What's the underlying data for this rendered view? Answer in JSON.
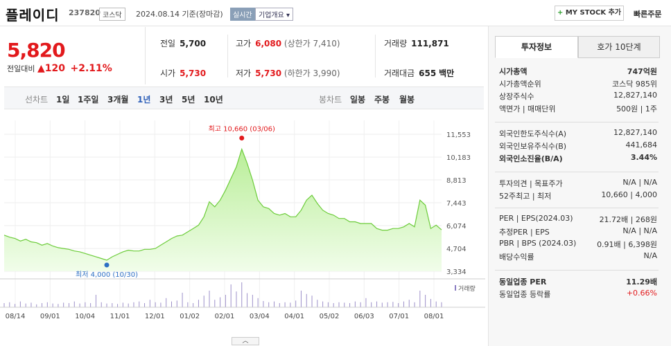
{
  "header": {
    "name": "플레이디",
    "code": "237820",
    "market": "코스닥",
    "date": "2024.08.14 기준(장마감)",
    "live_label": "실시간",
    "overview_label": "기업개요",
    "mystock_label": "MY STOCK 추가",
    "quick_order": "빠른주문"
  },
  "quote": {
    "price": "5,820",
    "change_label": "전일대비",
    "change_value": "120",
    "change_pct": "+2.11%",
    "prev_label": "전일",
    "prev": "5,700",
    "open_label": "시가",
    "open": "5,730",
    "high_label": "고가",
    "high": "6,080",
    "upper_label": "(상한가",
    "upper": "7,410)",
    "low_label": "저가",
    "low": "5,730",
    "lower_label": "(하한가",
    "lower": "3,990)",
    "volume_label": "거래량",
    "volume": "111,871",
    "amount_label": "거래대금",
    "amount": "655",
    "amount_unit": "백만"
  },
  "chart_bar": {
    "line_label": "선차트",
    "periods": [
      "1일",
      "1주일",
      "3개월",
      "1년",
      "3년",
      "5년",
      "10년"
    ],
    "active": "1년",
    "candle_label": "봉차트",
    "candles": [
      "일봉",
      "주봉",
      "월봉"
    ]
  },
  "chart_data": {
    "type": "area",
    "x_ticks": [
      "08/14",
      "09/01",
      "10/04",
      "11/01",
      "12/01",
      "01/02",
      "02/01",
      "03/04",
      "04/01",
      "05/02",
      "06/03",
      "07/01",
      "08/01"
    ],
    "y_ticks": [
      "11,553",
      "10,183",
      "8,813",
      "7,443",
      "6,074",
      "4,704",
      "3,334"
    ],
    "ylim": [
      3334,
      11553
    ],
    "series": [
      {
        "values": [
          5500,
          5380,
          5300,
          5150,
          5250,
          5100,
          5050,
          4900,
          5000,
          4850,
          4750,
          4700,
          4650,
          4550,
          4500,
          4400,
          4300,
          4200,
          4100,
          4000,
          4200,
          4350,
          4500,
          4600,
          4550,
          4550,
          4650,
          4650,
          4700,
          4900,
          5100,
          5300,
          5450,
          5500,
          5700,
          5900,
          6100,
          6600,
          7500,
          7200,
          7600,
          8200,
          8900,
          9600,
          10660,
          9800,
          8800,
          7600,
          7200,
          7100,
          6800,
          6700,
          6800,
          6600,
          6600,
          7000,
          7600,
          7900,
          7400,
          7000,
          6800,
          6700,
          6500,
          6500,
          6300,
          6300,
          6200,
          6200,
          6200,
          5900,
          5800,
          5800,
          5900,
          5900,
          6000,
          6200,
          6000,
          7600,
          7300,
          5900,
          6100,
          5820
        ]
      }
    ],
    "volume": [
      10,
      12,
      8,
      14,
      9,
      11,
      7,
      10,
      12,
      9,
      8,
      11,
      10,
      14,
      9,
      12,
      10,
      30,
      12,
      9,
      10,
      8,
      11,
      9,
      12,
      14,
      10,
      18,
      12,
      11,
      22,
      14,
      16,
      35,
      12,
      10,
      18,
      28,
      40,
      18,
      24,
      30,
      55,
      38,
      60,
      34,
      30,
      22,
      15,
      12,
      14,
      10,
      12,
      11,
      16,
      40,
      32,
      28,
      18,
      14,
      12,
      10,
      12,
      11,
      10,
      14,
      12,
      22,
      12,
      14,
      11,
      12,
      13,
      10,
      14,
      18,
      12,
      40,
      30,
      20,
      14,
      12
    ],
    "volume_label": "거래량",
    "max_label": "최고 10,660 (03/06)",
    "min_label": "최저 4,000 (10/30)",
    "line_color": "#6ccc3a"
  },
  "right_panel": {
    "tab_active": "투자정보",
    "tab_other": "호가 10단계",
    "rows1": [
      {
        "k": "시가총액",
        "v": "747억원",
        "bold": true
      },
      {
        "k": "시가총액순위",
        "v": "코스닥 985위"
      },
      {
        "k": "상장주식수",
        "v": "12,827,140"
      },
      {
        "k": "액면가 | 매매단위",
        "v": "500원 | 1주"
      }
    ],
    "rows2": [
      {
        "k": "외국인한도주식수(A)",
        "v": "12,827,140"
      },
      {
        "k": "외국인보유주식수(B)",
        "v": "441,684"
      },
      {
        "k": "외국인소진율(B/A)",
        "v": "3.44%",
        "bold": true
      }
    ],
    "rows3": [
      {
        "k": "투자의견 | 목표주가",
        "v": "N/A | N/A"
      },
      {
        "k": "52주최고 | 최저",
        "v": "10,660 | 4,000"
      }
    ],
    "rows4": [
      {
        "k": "PER | EPS(2024.03)",
        "v": "21.72배 | 268원"
      },
      {
        "k": "추정PER | EPS",
        "v": "N/A | N/A"
      },
      {
        "k": "PBR | BPS (2024.03)",
        "v": "0.91배 | 6,398원"
      },
      {
        "k": "배당수익률",
        "v": "N/A"
      }
    ],
    "rows5": [
      {
        "k": "동일업종 PER",
        "v": "11.29배",
        "bold": true
      },
      {
        "k": "동일업종 등락률",
        "v": "+0.66%",
        "red": true
      }
    ]
  }
}
